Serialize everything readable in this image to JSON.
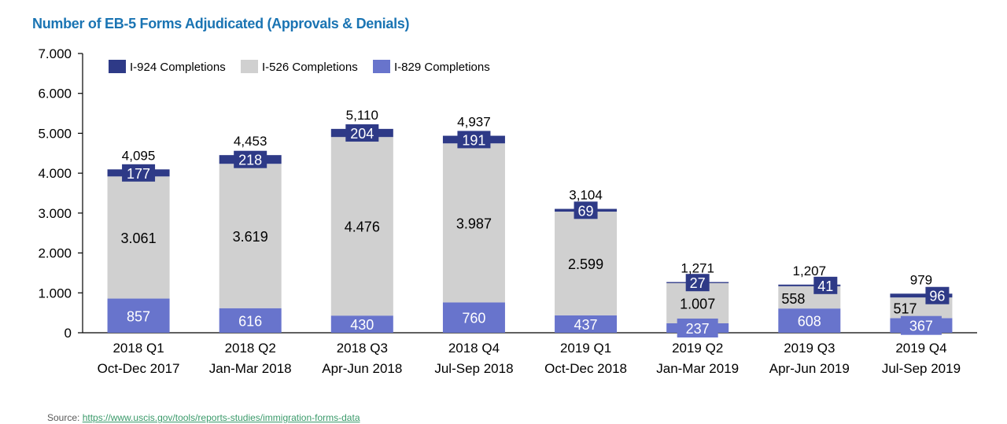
{
  "chart_data": {
    "type": "bar",
    "stacked": true,
    "title": "Number of EB-5 Forms Adjudicated (Approvals & Denials)",
    "xlabel": "",
    "ylabel": "",
    "ylim": [
      0,
      7000
    ],
    "yticks": [
      0,
      1000,
      2000,
      3000,
      4000,
      5000,
      6000,
      7000
    ],
    "ytick_labels": [
      "0",
      "1.000",
      "2.000",
      "3.000",
      "4.000",
      "5.000",
      "6.000",
      "7.000"
    ],
    "grid": false,
    "legend_position": "top-left",
    "categories": [
      [
        "2018 Q1",
        "Oct-Dec 2017"
      ],
      [
        "2018 Q2",
        "Jan-Mar 2018"
      ],
      [
        "2018 Q3",
        "Apr-Jun 2018"
      ],
      [
        "2018 Q4",
        "Jul-Sep 2018"
      ],
      [
        "2019 Q1",
        "Oct-Dec 2018"
      ],
      [
        "2019 Q2",
        "Jan-Mar 2019"
      ],
      [
        "2019 Q3",
        "Apr-Jun 2019"
      ],
      [
        "2019 Q4",
        "Jul-Sep 2019"
      ]
    ],
    "series": [
      {
        "name": "I-829 Completions",
        "color": "#6874cc",
        "label_color": "#ffffff",
        "values": [
          857,
          616,
          430,
          760,
          437,
          237,
          608,
          367
        ],
        "labels": [
          "857",
          "616",
          "430",
          "760",
          "437",
          "237",
          "608",
          "367"
        ]
      },
      {
        "name": "I-526 Completions",
        "color": "#d0d0d0",
        "label_color": "#000000",
        "values": [
          3061,
          3619,
          4476,
          3987,
          2599,
          1007,
          558,
          517
        ],
        "labels": [
          "3.061",
          "3.619",
          "4.476",
          "3.987",
          "2.599",
          "1.007",
          "558",
          "517"
        ]
      },
      {
        "name": "I-924 Completions",
        "color": "#2e3a87",
        "label_color": "#ffffff",
        "values": [
          177,
          218,
          204,
          191,
          69,
          27,
          41,
          96
        ],
        "labels": [
          "177",
          "218",
          "204",
          "191",
          "69",
          "27",
          "41",
          "96"
        ]
      }
    ],
    "legend_order": [
      "I-924 Completions",
      "I-526 Completions",
      "I-829 Completions"
    ],
    "totals": [
      4095,
      4453,
      5110,
      4937,
      3104,
      1271,
      1207,
      979
    ],
    "total_labels": [
      "4,095",
      "4,453",
      "5,110",
      "4,937",
      "3,104",
      "1,271",
      "1,207",
      "979"
    ]
  },
  "source": {
    "prefix": "Source: ",
    "link_text": "https://www.uscis.gov/tools/reports-studies/immigration-forms-data"
  }
}
